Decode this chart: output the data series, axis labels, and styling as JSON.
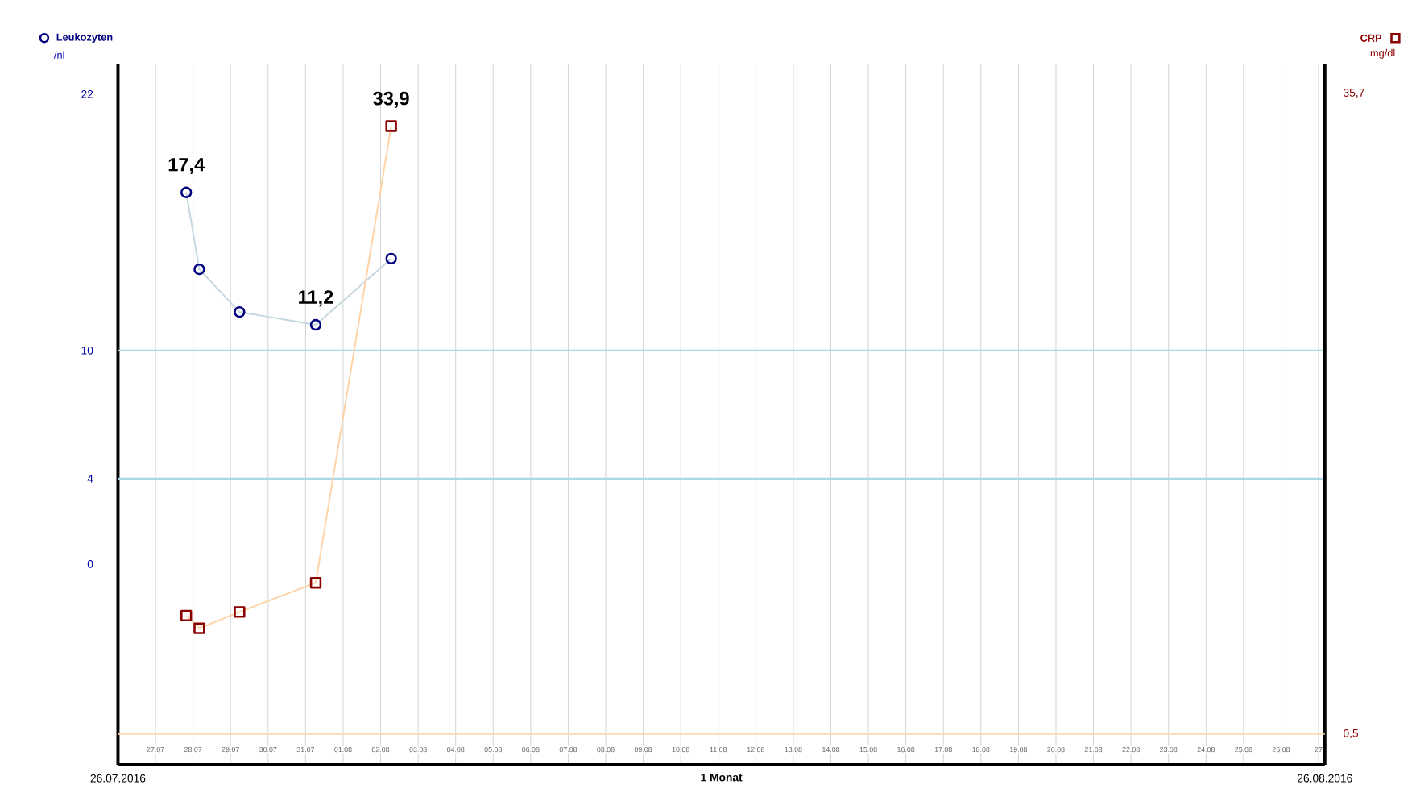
{
  "chart_data": {
    "type": "line",
    "xlabel": "1 Monat",
    "ylabel": "/nl",
    "y2label": "mg/dl",
    "annotations": [
      "26.07.2016",
      "26.08.2016"
    ],
    "x": [
      "2016-07-27T19:40",
      "2016-07-28T04:00",
      "2016-07-29T05:45",
      "2016-07-31T06:30",
      "2016-08-02T06:45"
    ],
    "xlim": [
      "2016-07-26",
      "2016-08-27T04:00"
    ],
    "xticks": [
      {
        "value": "2016-07-27",
        "label": "27.07"
      },
      {
        "value": "2016-07-28",
        "label": "28.07"
      },
      {
        "value": "2016-07-29",
        "label": "29.07"
      },
      {
        "value": "2016-07-30",
        "label": "30.07"
      },
      {
        "value": "2016-07-31",
        "label": "31.07"
      },
      {
        "value": "2016-08-01",
        "label": "01.08"
      },
      {
        "value": "2016-08-02",
        "label": "02.08"
      },
      {
        "value": "2016-08-03",
        "label": "03.08"
      },
      {
        "value": "2016-08-04",
        "label": "04.08"
      },
      {
        "value": "2016-08-05",
        "label": "05.08"
      },
      {
        "value": "2016-08-06",
        "label": "06.08"
      },
      {
        "value": "2016-08-07",
        "label": "07.08"
      },
      {
        "value": "2016-08-08",
        "label": "08.08"
      },
      {
        "value": "2016-08-09",
        "label": "09.08"
      },
      {
        "value": "2016-08-10",
        "label": "10.08"
      },
      {
        "value": "2016-08-11",
        "label": "11.08"
      },
      {
        "value": "2016-08-12",
        "label": "12.08"
      },
      {
        "value": "2016-08-13",
        "label": "13.08"
      },
      {
        "value": "2016-08-14",
        "label": "14.08"
      },
      {
        "value": "2016-08-15",
        "label": "15.08"
      },
      {
        "value": "2016-08-16",
        "label": "16.08"
      },
      {
        "value": "2016-08-17",
        "label": "17.08"
      },
      {
        "value": "2016-08-18",
        "label": "18.08"
      },
      {
        "value": "2016-08-19",
        "label": "19.08"
      },
      {
        "value": "2016-08-20",
        "label": "20.08"
      },
      {
        "value": "2016-08-21",
        "label": "21.08"
      },
      {
        "value": "2016-08-22",
        "label": "22.08"
      },
      {
        "value": "2016-08-23",
        "label": "23.08"
      },
      {
        "value": "2016-08-24",
        "label": "24.08"
      },
      {
        "value": "2016-08-25",
        "label": "25.08"
      },
      {
        "value": "2016-08-26",
        "label": "26.08"
      },
      {
        "value": "2016-08-27",
        "label": "27"
      }
    ],
    "ylim": [
      -9.4,
      23.4
    ],
    "yticks": [
      0,
      4,
      10,
      22
    ],
    "y2lim": [
      -1.2,
      37.3
    ],
    "y2ticks": [
      {
        "value": 0.5,
        "label": "0,5"
      },
      {
        "value": 35.7,
        "label": "35,7"
      }
    ],
    "series": [
      {
        "name": "Leukozyten",
        "color": "#000080",
        "marker": "circle",
        "values": [
          17.4,
          13.8,
          11.8,
          11.2,
          14.3
        ],
        "value_labels": [
          "17,4",
          null,
          null,
          "11,2",
          null
        ]
      },
      {
        "name": "CRP",
        "color": "#8b0000",
        "marker": "square",
        "axis": "y2",
        "values": [
          7.0,
          6.3,
          7.2,
          8.8,
          33.9
        ],
        "value_labels": [
          null,
          null,
          null,
          null,
          "33,9"
        ]
      }
    ],
    "ref_lines": [
      {
        "axis": "y",
        "value": 10,
        "color": "#add8e6"
      },
      {
        "axis": "y",
        "value": 4,
        "color": "#add8e6"
      },
      {
        "axis": "y2",
        "value": 0.5,
        "color": "#ffd8b0"
      }
    ],
    "grid": "x",
    "legend": "top"
  }
}
